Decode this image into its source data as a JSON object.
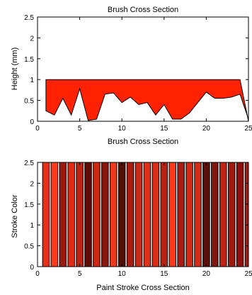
{
  "chart_data": [
    {
      "type": "area",
      "title": "Brush Cross Section",
      "xlabel": "Brush Cross Section",
      "ylabel": "Height (mm)",
      "xlim": [
        0,
        25
      ],
      "ylim": [
        0,
        2.5
      ],
      "xticks": [
        "0",
        "5",
        "10",
        "15",
        "20",
        "25"
      ],
      "yticks": [
        "0",
        "0.5",
        "1",
        "1.5",
        "2",
        "2.5"
      ],
      "grid": false,
      "fill_color": "#ff2200",
      "top_line": {
        "x": [
          1,
          24,
          25
        ],
        "y": [
          1,
          1,
          0
        ]
      },
      "bottom_line": {
        "x": [
          1,
          2,
          3,
          4,
          5,
          6,
          7,
          8,
          9,
          10,
          11,
          12,
          13,
          14,
          15,
          16,
          17,
          18,
          19,
          20,
          21,
          22,
          23,
          24,
          25
        ],
        "y": [
          0.25,
          0.15,
          0.55,
          0.15,
          0.78,
          0.02,
          0.05,
          0.65,
          0.68,
          0.45,
          0.58,
          0.4,
          0.45,
          0.15,
          0.4,
          0.05,
          0.05,
          0.2,
          0.45,
          0.7,
          0.55,
          0.55,
          0.58,
          0.65,
          0.05
        ]
      }
    },
    {
      "type": "bar",
      "title": "",
      "xlabel": "Paint Stroke Cross Section",
      "ylabel": "Stroke Color",
      "xlim": [
        0,
        25
      ],
      "ylim": [
        0,
        2.5
      ],
      "xticks": [
        "0",
        "5",
        "10",
        "15",
        "20",
        "25"
      ],
      "yticks": [
        "0",
        "0.5",
        "1",
        "1.5",
        "2",
        "2.5"
      ],
      "grid": false,
      "x": [
        1,
        2,
        3,
        4,
        5,
        6,
        7,
        8,
        9,
        10,
        11,
        12,
        13,
        14,
        15,
        16,
        17,
        18,
        19,
        20,
        21,
        22,
        23,
        24,
        25
      ],
      "values": [
        2.5,
        2.5,
        2.5,
        2.5,
        2.5,
        2.5,
        2.5,
        2.5,
        2.5,
        2.5,
        2.5,
        2.5,
        2.5,
        2.5,
        2.5,
        2.5,
        2.5,
        2.5,
        2.5,
        2.5,
        2.5,
        2.5,
        2.5,
        2.5,
        2.5
      ],
      "colors": [
        "#e83018",
        "#ff3a1a",
        "#9a1a10",
        "#e02a14",
        "#c02212",
        "#600c06",
        "#d02614",
        "#8a1610",
        "#ee3a1c",
        "#501006",
        "#aa1c10",
        "#c82a18",
        "#e0301a",
        "#dc2c16",
        "#b82212",
        "#ff3a1a",
        "#a81c12",
        "#d02a16",
        "#d42c18",
        "#5a1008",
        "#801610",
        "#c02414",
        "#a01a10",
        "#900f0a",
        "#a81a10"
      ]
    }
  ]
}
